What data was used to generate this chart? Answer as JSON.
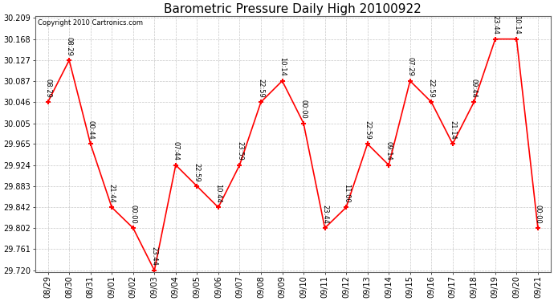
{
  "title": "Barometric Pressure Daily High 20100922",
  "copyright": "Copyright 2010 Cartronics.com",
  "x_labels": [
    "08/29",
    "08/30",
    "08/31",
    "09/01",
    "09/02",
    "09/03",
    "09/04",
    "09/05",
    "09/06",
    "09/07",
    "09/08",
    "09/09",
    "09/10",
    "09/11",
    "09/12",
    "09/13",
    "09/14",
    "09/15",
    "09/16",
    "09/17",
    "09/18",
    "09/19",
    "09/20",
    "09/21"
  ],
  "data_points": [
    {
      "date": "08/29",
      "time": "08:29",
      "value": 30.046
    },
    {
      "date": "08/30",
      "time": "08:29",
      "value": 30.127
    },
    {
      "date": "08/31",
      "time": "00:44",
      "value": 29.965
    },
    {
      "date": "09/01",
      "time": "21:44",
      "value": 29.842
    },
    {
      "date": "09/02",
      "time": "00:00",
      "value": 29.802
    },
    {
      "date": "09/03",
      "time": "23:44",
      "value": 29.72
    },
    {
      "date": "09/04",
      "time": "07:44",
      "value": 29.924
    },
    {
      "date": "09/05",
      "time": "22:59",
      "value": 29.883
    },
    {
      "date": "09/06",
      "time": "10:44",
      "value": 29.842
    },
    {
      "date": "09/07",
      "time": "23:59",
      "value": 29.924
    },
    {
      "date": "09/08",
      "time": "22:59",
      "value": 30.046
    },
    {
      "date": "09/09",
      "time": "10:14",
      "value": 30.087
    },
    {
      "date": "09/10",
      "time": "00:00",
      "value": 30.005
    },
    {
      "date": "09/11",
      "time": "23:44",
      "value": 29.802
    },
    {
      "date": "09/12",
      "time": "11:00",
      "value": 29.842
    },
    {
      "date": "09/13",
      "time": "22:59",
      "value": 29.965
    },
    {
      "date": "09/14",
      "time": "09:14",
      "value": 29.924
    },
    {
      "date": "09/15",
      "time": "07:29",
      "value": 30.087
    },
    {
      "date": "09/16",
      "time": "22:59",
      "value": 30.046
    },
    {
      "date": "09/17",
      "time": "21:14",
      "value": 29.965
    },
    {
      "date": "09/18",
      "time": "09:44",
      "value": 30.046
    },
    {
      "date": "09/19",
      "time": "23:44",
      "value": 30.168
    },
    {
      "date": "09/20",
      "time": "10:14",
      "value": 30.168
    },
    {
      "date": "09/21",
      "time": "00:00",
      "value": 29.802
    }
  ],
  "ylim_min": 29.72,
  "ylim_max": 30.209,
  "yticks": [
    29.72,
    29.761,
    29.802,
    29.842,
    29.883,
    29.924,
    29.965,
    30.005,
    30.046,
    30.087,
    30.127,
    30.168,
    30.209
  ],
  "line_color": "red",
  "marker_color": "red",
  "marker": "+",
  "bg_color": "#ffffff",
  "grid_color": "#c8c8c8",
  "title_fontsize": 11,
  "label_fontsize": 7,
  "annotation_fontsize": 6,
  "copyright_fontsize": 6
}
